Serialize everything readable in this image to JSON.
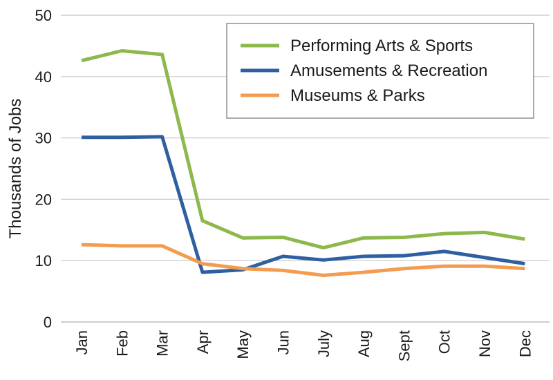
{
  "chart_data": {
    "type": "line",
    "ylabel": "Thousands of Jobs",
    "xlabel": "",
    "ylim": [
      0,
      50
    ],
    "yticks": [
      0,
      10,
      20,
      30,
      40,
      50
    ],
    "grid": "horizontal",
    "legend_position": "top-right",
    "categories": [
      "Jan",
      "Feb",
      "Mar",
      "Apr",
      "May",
      "Jun",
      "July",
      "Aug",
      "Sept",
      "Oct",
      "Nov",
      "Dec"
    ],
    "series": [
      {
        "name": "Performing Arts & Sports",
        "color": "#8db94c",
        "values": [
          42.6,
          44.2,
          43.6,
          16.5,
          13.7,
          13.8,
          12.1,
          13.7,
          13.8,
          14.4,
          14.6,
          13.5
        ]
      },
      {
        "name": "Amusements & Recreation",
        "color": "#2e5fa1",
        "values": [
          30.1,
          30.1,
          30.2,
          8.1,
          8.5,
          10.7,
          10.1,
          10.7,
          10.8,
          11.5,
          10.5,
          9.5
        ]
      },
      {
        "name": "Museums & Parks",
        "color": "#f39c4f",
        "values": [
          12.6,
          12.4,
          12.4,
          9.5,
          8.7,
          8.4,
          7.6,
          8.1,
          8.7,
          9.1,
          9.1,
          8.7
        ]
      }
    ]
  }
}
